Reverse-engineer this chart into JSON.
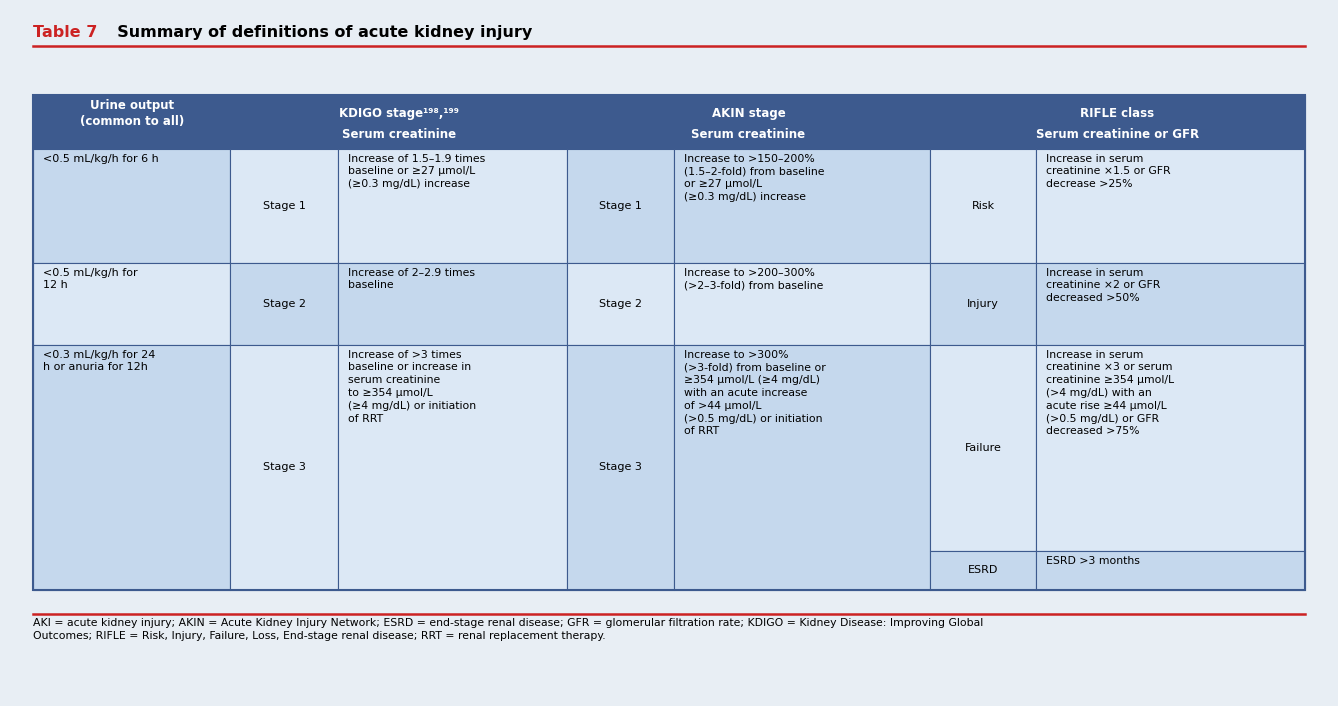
{
  "title_part1": "Table 7",
  "title_part2": "  Summary of definitions of acute kidney injury",
  "bg_color": "#e8eef4",
  "header_dark": "#3d5a8e",
  "cell_light1": "#c5d8ed",
  "cell_light2": "#dce8f5",
  "border_color": "#3d5a8e",
  "red_line": "#cc2222",
  "footnote": "AKI = acute kidney injury; AKIN = Acute Kidney Injury Network; ESRD = end-stage renal disease; GFR = glomerular filtration rate; KDIGO = Kidney Disease: Improving Global\nOutcomes; RIFLE = Risk, Injury, Failure, Loss, End-stage renal disease; RRT = renal replacement therapy.",
  "rows": [
    {
      "urine": "<0.5 mL/kg/h for 6 h",
      "kdigo_stage": "Stage 1",
      "kdigo_desc": "Increase of 1.5–1.9 times\nbaseline or ≥27 μmol/L\n(≥0.3 mg/dL) increase",
      "akin_stage": "Stage 1",
      "akin_desc": "Increase to >150–200%\n(1.5–2-fold) from baseline\nor ≥27 μmol/L\n(≥0.3 mg/dL) increase",
      "rifle_class": "Risk",
      "rifle_desc": "Increase in serum\ncreatinine ×1.5 or GFR\ndecrease >25%"
    },
    {
      "urine": "<0.5 mL/kg/h for\n12 h",
      "kdigo_stage": "Stage 2",
      "kdigo_desc": "Increase of 2–2.9 times\nbaseline",
      "akin_stage": "Stage 2",
      "akin_desc": "Increase to >200–300%\n(>2–3-fold) from baseline",
      "rifle_class": "Injury",
      "rifle_desc": "Increase in serum\ncreatinine ×2 or GFR\ndecreased >50%"
    },
    {
      "urine": "<0.3 mL/kg/h for 24\nh or anuria for 12h",
      "kdigo_stage": "Stage 3",
      "kdigo_desc": "Increase of >3 times\nbaseline or increase in\nserum creatinine\nto ≥354 μmol/L\n(≥4 mg/dL) or initiation\nof RRT",
      "akin_stage": "Stage 3",
      "akin_desc": "Increase to >300%\n(>3-fold) from baseline or\n≥354 μmol/L (≥4 mg/dL)\nwith an acute increase\nof >44 μmol/L\n(>0.5 mg/dL) or initiation\nof RRT",
      "rifle_class": "Failure",
      "rifle_desc": "Increase in serum\ncreatinine ×3 or serum\ncreatinine ≥354 μmol/L\n(>4 mg/dL) with an\nacute rise ≥44 μmol/L\n(>0.5 mg/dL) or GFR\ndecreased >75%",
      "extra_rifle_class": "ESRD",
      "extra_rifle_desc": "ESRD >3 months"
    }
  ]
}
